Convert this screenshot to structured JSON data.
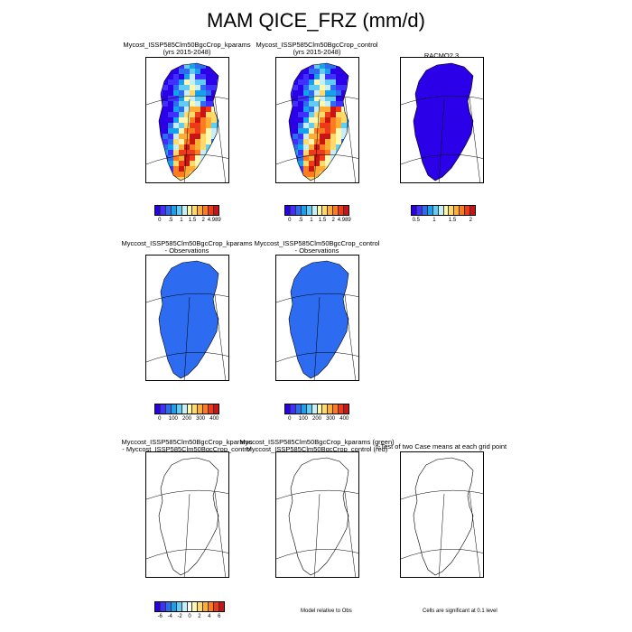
{
  "title": "MAM QICE_FRZ (mm/d)",
  "palette": [
    "#2b00e8",
    "#3f30ff",
    "#2d6cf0",
    "#18a0ee",
    "#62ccf4",
    "#c8eefa",
    "#fff9b0",
    "#ffd96a",
    "#ffad35",
    "#ff7b1f",
    "#ee3a1a",
    "#c81414"
  ],
  "diff_palette": [
    "#2b00e8",
    "#3f30ff",
    "#2d6cf0",
    "#18a0ee",
    "#62ccf4",
    "#c8eefa",
    "#ffffff",
    "#fff9b0",
    "#ffd96a",
    "#ffad35",
    "#ff7b1f",
    "#ee3a1a",
    "#c81414"
  ],
  "row1": {
    "panel1": {
      "title_line1": "Mycost_ISSP585Clm50BgcCrop_kparams",
      "title_line2": "(yrs 2015-2048)"
    },
    "panel2": {
      "title_line1": "Mycost_ISSP585Clm50BgcCrop_control",
      "title_line2": "(yrs 2015-2048)"
    },
    "panel3": {
      "title_line1": "RACMO2.3"
    },
    "cbar1_ticks": [
      "0",
      ".5",
      "1",
      "1.5",
      "2",
      "4.989"
    ],
    "cbar2_ticks": [
      "0",
      ".5",
      "1",
      "1.5",
      "2",
      "4.989"
    ],
    "cbar3_ticks": [
      "0.5",
      "1",
      "1.5",
      "2"
    ]
  },
  "row2": {
    "panel1": {
      "title_line1": "Myccost_ISSP585Clm50BgcCrop_kparams",
      "title_line2": "- Observations"
    },
    "panel2": {
      "title_line1": "Myccost_ISSP585Clm50BgcCrop_control",
      "title_line2": "- Observations"
    },
    "cbar1_ticks": [
      "0",
      "100",
      "200",
      "300",
      "400"
    ],
    "cbar2_ticks": [
      "0",
      "100",
      "200",
      "300",
      "400"
    ]
  },
  "row3": {
    "panel1": {
      "title_line1": "Myccost_ISSP585Clm50BgcCrop_kparams",
      "title_line2": "- Myccost_ISSP585Clm50BgcCrop_control"
    },
    "panel2": {
      "title_line1": "Myccost_ISSP585Clm50BgcCrop_kparams (green)",
      "title_line2": "Myccost_ISSP585Clm50BgcCrop_control (red)"
    },
    "panel3": {
      "title_line1": "t-Test of two Case means at each grid point"
    },
    "cbar1_ticks": [
      "-6",
      "-4",
      "-2",
      "0",
      "2",
      "4",
      "6"
    ],
    "note_middle": "Model relative to Obs",
    "note_right": "Cells are significant at 0.1 level"
  }
}
